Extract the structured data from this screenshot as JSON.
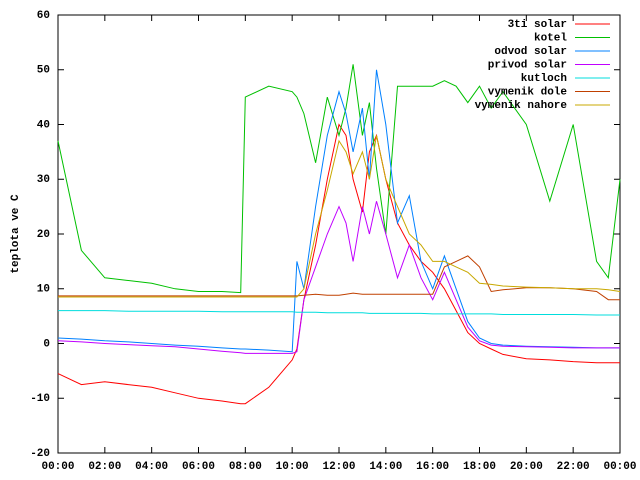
{
  "chart_data": {
    "type": "line",
    "y_label": "teplota ve C",
    "x": [
      0,
      1,
      2,
      3,
      4,
      5,
      6,
      7,
      7.8,
      8,
      9,
      10,
      10.2,
      10.5,
      11,
      11.5,
      12,
      12.3,
      12.6,
      13,
      13.3,
      13.6,
      14,
      14.5,
      15,
      15.5,
      16,
      16.5,
      17,
      17.5,
      18,
      18.5,
      19,
      20,
      21,
      22,
      23,
      23.5,
      24
    ],
    "xlim": [
      0,
      24
    ],
    "xticks": [
      {
        "value": 0,
        "label": "00:00"
      },
      {
        "value": 2,
        "label": "02:00"
      },
      {
        "value": 4,
        "label": "04:00"
      },
      {
        "value": 6,
        "label": "06:00"
      },
      {
        "value": 8,
        "label": "08:00"
      },
      {
        "value": 10,
        "label": "10:00"
      },
      {
        "value": 12,
        "label": "12:00"
      },
      {
        "value": 14,
        "label": "14:00"
      },
      {
        "value": 16,
        "label": "16:00"
      },
      {
        "value": 18,
        "label": "18:00"
      },
      {
        "value": 20,
        "label": "20:00"
      },
      {
        "value": 22,
        "label": "22:00"
      },
      {
        "value": 24,
        "label": "00:00"
      }
    ],
    "ylim": [
      -20,
      60
    ],
    "yticks": [
      -20,
      -10,
      0,
      10,
      20,
      30,
      40,
      50,
      60
    ],
    "legend": "top-right",
    "series": [
      {
        "name": "3ti solar",
        "color": "#ff0000",
        "values": [
          -5.5,
          -7.5,
          -7,
          -7.5,
          -8,
          -9,
          -10,
          -10.5,
          -11,
          -11,
          -8,
          -3,
          -1,
          8,
          18,
          30,
          40,
          38,
          30,
          24,
          35,
          38,
          30,
          22,
          18,
          15,
          13,
          10,
          6,
          2,
          0,
          -1,
          -2,
          -2.8,
          -3,
          -3.3,
          -3.5,
          -3.5,
          -3.5
        ]
      },
      {
        "name": "kotel",
        "color": "#00c000",
        "values": [
          37,
          17,
          12,
          11.5,
          11,
          10,
          9.5,
          9.5,
          9.3,
          45,
          47,
          46,
          45,
          42,
          33,
          45,
          38,
          43,
          51,
          38,
          44,
          32,
          20,
          47,
          47,
          47,
          47,
          48,
          47,
          44,
          47,
          43,
          46,
          40,
          26,
          40,
          15,
          12,
          30
        ]
      },
      {
        "name": "odvod solar",
        "color": "#0080ff",
        "values": [
          1,
          0.8,
          0.5,
          0.3,
          0,
          -0.3,
          -0.5,
          -0.8,
          -1,
          -1,
          -1.2,
          -1.5,
          15,
          10,
          25,
          38,
          46,
          42,
          35,
          43,
          30,
          50,
          40,
          22,
          27,
          15,
          10,
          16,
          10,
          4,
          1,
          0,
          -0.3,
          -0.5,
          -0.6,
          -0.7,
          -0.8,
          -0.8,
          -0.8
        ]
      },
      {
        "name": "privod solar",
        "color": "#c000ff",
        "values": [
          0.5,
          0.3,
          0,
          -0.2,
          -0.4,
          -0.6,
          -1,
          -1.4,
          -1.7,
          -1.8,
          -1.8,
          -1.8,
          -1.5,
          8,
          14,
          20,
          25,
          22,
          15,
          25,
          20,
          26,
          20,
          12,
          18,
          12,
          8,
          13,
          8,
          3,
          0.5,
          -0.3,
          -0.5,
          -0.6,
          -0.7,
          -0.8,
          -0.8,
          -0.8,
          -0.8
        ]
      },
      {
        "name": "kutloch",
        "color": "#00dddd",
        "values": [
          6,
          6,
          6,
          5.9,
          5.9,
          5.9,
          5.9,
          5.8,
          5.8,
          5.8,
          5.8,
          5.8,
          5.7,
          5.7,
          5.7,
          5.6,
          5.6,
          5.6,
          5.6,
          5.6,
          5.5,
          5.5,
          5.5,
          5.5,
          5.5,
          5.5,
          5.4,
          5.4,
          5.4,
          5.4,
          5.4,
          5.4,
          5.3,
          5.3,
          5.3,
          5.3,
          5.2,
          5.2,
          5.2
        ]
      },
      {
        "name": "vymenik dole",
        "color": "#c04000",
        "values": [
          8.7,
          8.7,
          8.7,
          8.7,
          8.7,
          8.7,
          8.7,
          8.7,
          8.7,
          8.7,
          8.7,
          8.7,
          8.7,
          8.8,
          9,
          8.8,
          8.8,
          9,
          9.2,
          9,
          9,
          9,
          9,
          9,
          9,
          9,
          9,
          14,
          15,
          16,
          14,
          9.5,
          9.8,
          10.2,
          10.2,
          10,
          9.5,
          8,
          8
        ]
      },
      {
        "name": "vymenik nahore",
        "color": "#c8a800",
        "values": [
          8.5,
          8.5,
          8.5,
          8.5,
          8.5,
          8.5,
          8.5,
          8.5,
          8.5,
          8.5,
          8.5,
          8.5,
          8.5,
          10,
          20,
          28,
          37,
          35,
          31,
          35,
          30,
          38,
          30,
          25,
          20,
          18,
          15,
          15,
          14,
          13,
          11,
          10.8,
          10.5,
          10.3,
          10.2,
          10,
          10,
          9.8,
          9.5
        ]
      }
    ]
  }
}
